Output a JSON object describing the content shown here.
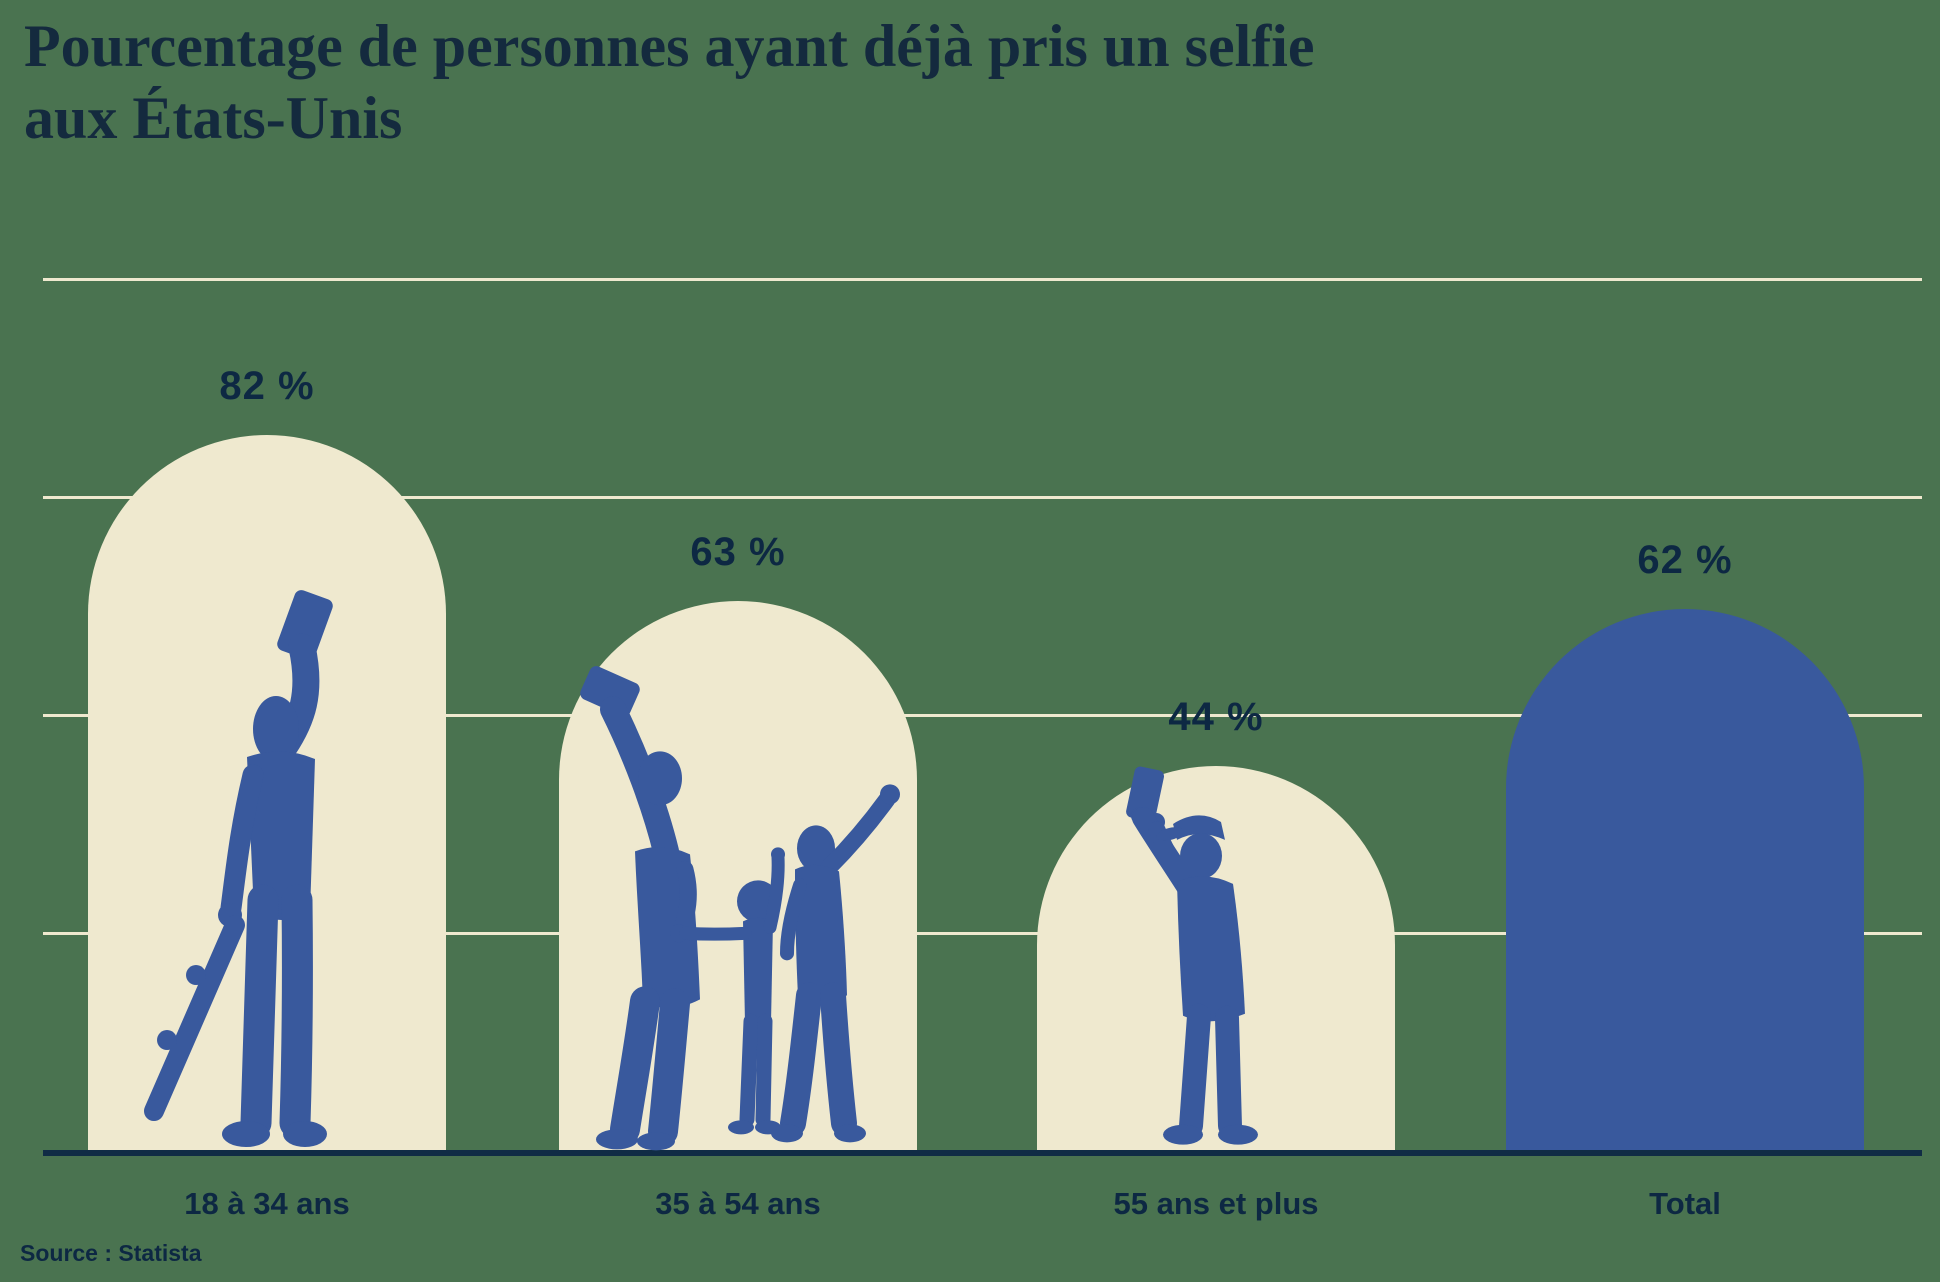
{
  "title": {
    "line1": "Pourcentage de personnes ayant déjà pris un selfie",
    "line2": "aux États-Unis"
  },
  "source": "Source : Statista",
  "colors": {
    "background": "#4a7350",
    "bar_cream": "#efe9cf",
    "bar_blue": "#39599d",
    "silhouette_blue": "#39599d",
    "text_navy": "#0d2843",
    "title_navy": "#142a3e",
    "axis_navy": "#102c45",
    "gridline_cream": "#efe9cf"
  },
  "chart_data": {
    "type": "bar",
    "title": "Pourcentage de personnes ayant déjà pris un selfie aux États-Unis",
    "categories": [
      "18 à 34 ans",
      "35 à 54 ans",
      "55 ans et plus",
      "Total"
    ],
    "values": [
      82,
      63,
      44,
      62
    ],
    "value_labels": [
      "82 %",
      "63 %",
      "44 %",
      "62 %"
    ],
    "unit": "%",
    "ylim": [
      0,
      100
    ],
    "gridlines_pct": [
      25,
      50,
      75,
      100
    ],
    "grid": "on",
    "legend": "none",
    "bar_styles": [
      "cream",
      "cream",
      "cream",
      "blue"
    ],
    "bar_shape": "arch-rounded-top",
    "silhouettes": [
      "young-adult-taking-selfie-with-skateboard",
      "family-taking-selfie",
      "senior-man-taking-selfie",
      "none"
    ],
    "source": "Statista"
  }
}
